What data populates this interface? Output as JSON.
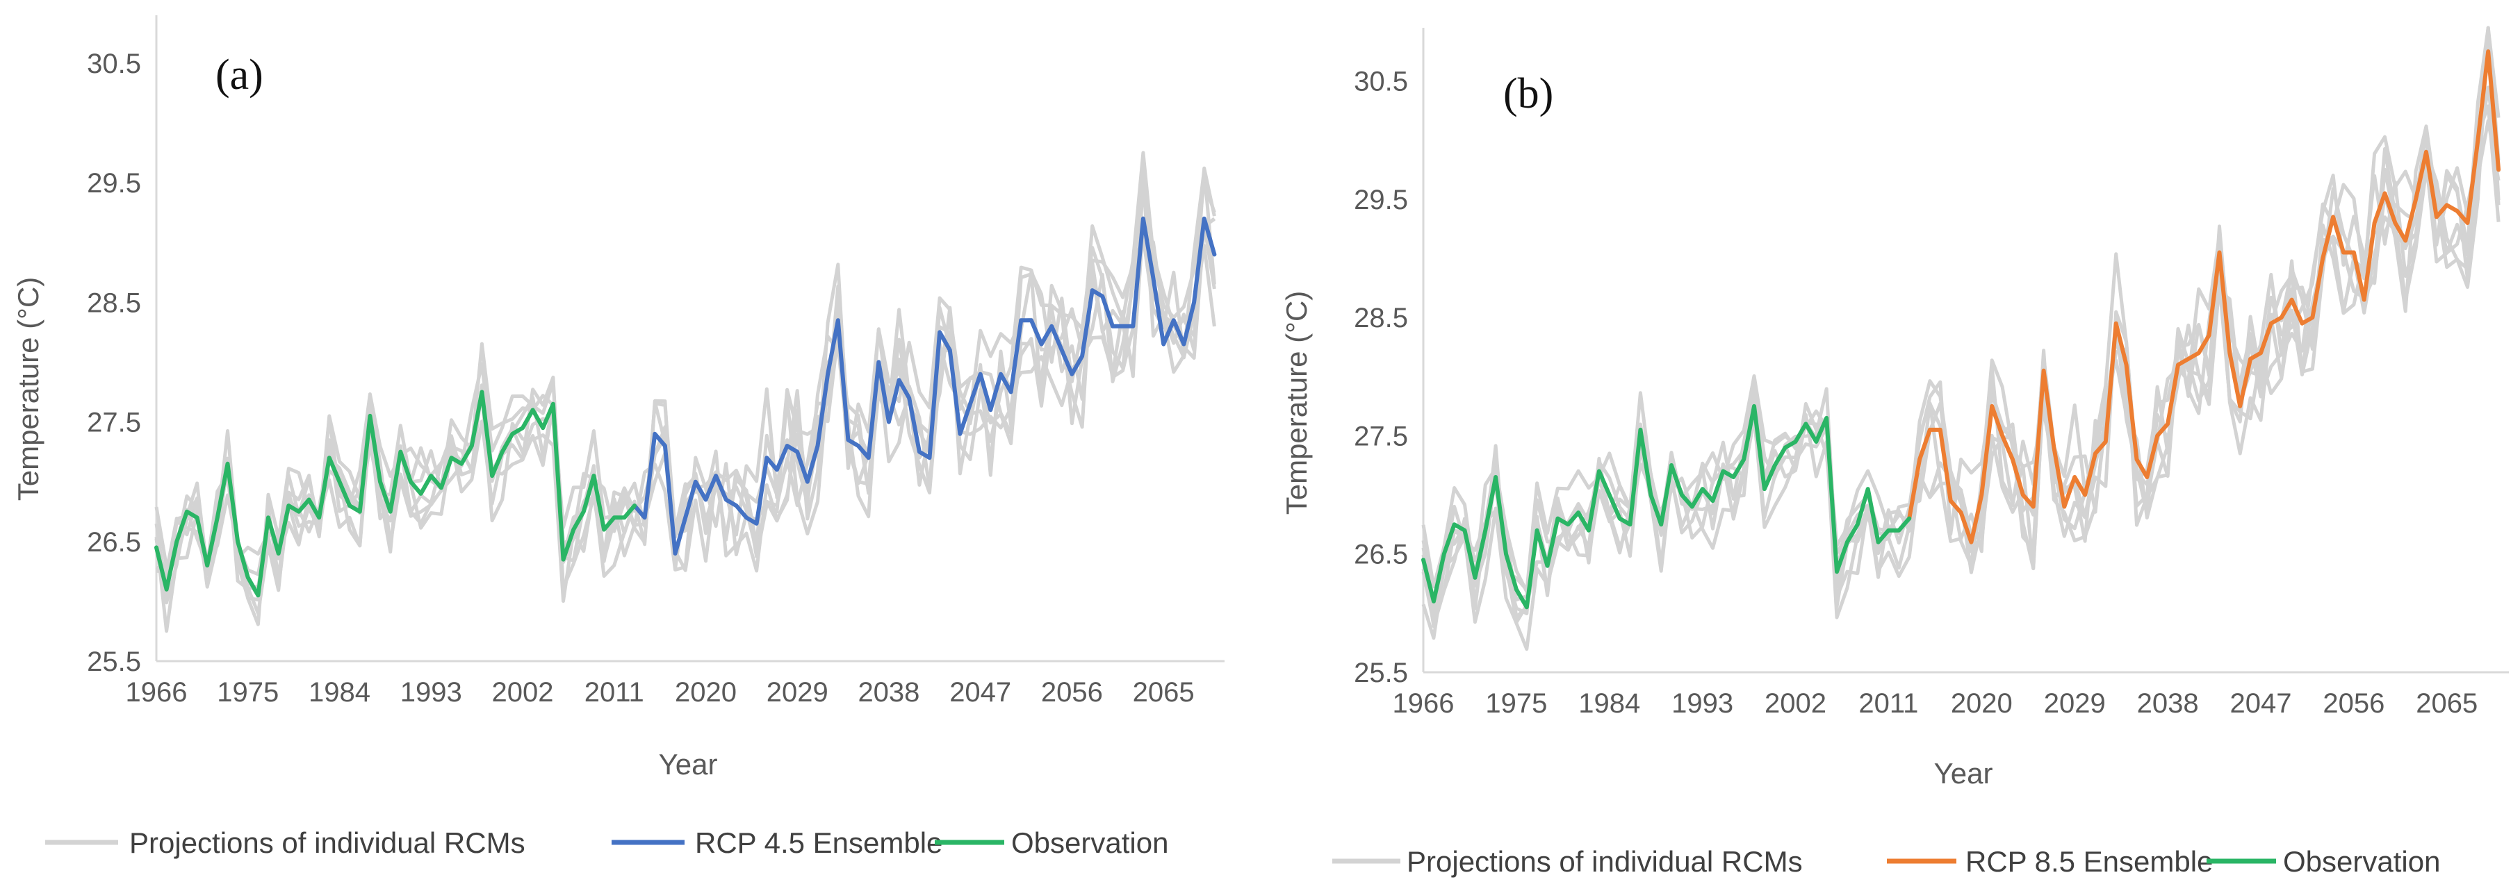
{
  "chart_data": [
    {
      "panel_label": "(a)",
      "type": "line",
      "xlabel": "Year",
      "ylabel": "Temperature (°C)",
      "x_ticks": [
        "1966",
        "1975",
        "1984",
        "1993",
        "2002",
        "2011",
        "2020",
        "2029",
        "2038",
        "2047",
        "2056",
        "2065"
      ],
      "y_ticks": [
        "25.5",
        "26.5",
        "27.5",
        "28.5",
        "29.5",
        "30.5"
      ],
      "xlim": [
        1966,
        2071
      ],
      "ylim": [
        25.5,
        30.9
      ],
      "grid": false,
      "legend": {
        "position": "bottom",
        "entries": [
          {
            "label": "Projections of individual RCMs",
            "color": "#d3d3d3"
          },
          {
            "label": "RCP 4.5 Ensemble",
            "color": "#4472c4"
          },
          {
            "label": "Observation",
            "color": "#2ab565"
          }
        ]
      },
      "series": [
        {
          "name": "Observation",
          "color": "#2ab565",
          "x": [
            1966,
            1967,
            1968,
            1969,
            1970,
            1971,
            1972,
            1973,
            1974,
            1975,
            1976,
            1977,
            1978,
            1979,
            1980,
            1981,
            1982,
            1983,
            1984,
            1985,
            1986,
            1987,
            1988,
            1989,
            1990,
            1991,
            1992,
            1993,
            1994,
            1995,
            1996,
            1997,
            1998,
            1999,
            2000,
            2001,
            2002,
            2003,
            2004,
            2005,
            2006,
            2007,
            2008,
            2009,
            2010,
            2011,
            2012,
            2013
          ],
          "y": [
            26.45,
            26.1,
            26.5,
            26.75,
            26.7,
            26.3,
            26.7,
            27.15,
            26.5,
            26.2,
            26.05,
            26.7,
            26.4,
            26.8,
            26.75,
            26.85,
            26.7,
            27.2,
            27.0,
            26.8,
            26.75,
            27.55,
            27.0,
            26.75,
            27.25,
            27.0,
            26.9,
            27.05,
            26.95,
            27.2,
            27.15,
            27.3,
            27.75,
            27.05,
            27.25,
            27.4,
            27.45,
            27.6,
            27.45,
            27.65,
            26.35,
            26.6,
            26.75,
            27.05,
            26.6,
            26.7,
            26.7,
            26.8
          ]
        },
        {
          "name": "RCP 4.5 Ensemble",
          "color": "#4472c4",
          "x": [
            2013,
            2014,
            2015,
            2016,
            2017,
            2018,
            2019,
            2020,
            2021,
            2022,
            2023,
            2024,
            2025,
            2026,
            2027,
            2028,
            2029,
            2030,
            2031,
            2032,
            2033,
            2034,
            2035,
            2036,
            2037,
            2038,
            2039,
            2040,
            2041,
            2042,
            2043,
            2044,
            2045,
            2046,
            2047,
            2048,
            2049,
            2050,
            2051,
            2052,
            2053,
            2054,
            2055,
            2056,
            2057,
            2058,
            2059,
            2060,
            2061,
            2062,
            2063,
            2064,
            2065,
            2066,
            2067,
            2068,
            2069,
            2070
          ],
          "y": [
            26.8,
            26.7,
            27.4,
            27.3,
            26.4,
            26.7,
            27.0,
            26.85,
            27.05,
            26.85,
            26.8,
            26.7,
            26.65,
            27.2,
            27.1,
            27.3,
            27.25,
            27.0,
            27.3,
            27.9,
            28.35,
            27.35,
            27.3,
            27.2,
            28.0,
            27.5,
            27.85,
            27.7,
            27.25,
            27.2,
            28.25,
            28.1,
            27.4,
            27.65,
            27.9,
            27.6,
            27.9,
            27.75,
            28.35,
            28.35,
            28.15,
            28.3,
            28.1,
            27.9,
            28.05,
            28.6,
            28.55,
            28.3,
            28.3,
            28.3,
            29.2,
            28.7,
            28.15,
            28.35,
            28.15,
            28.5,
            29.2,
            28.9
          ]
        }
      ]
    },
    {
      "panel_label": "(b)",
      "type": "line",
      "xlabel": "Year",
      "ylabel": "Temperature (°C)",
      "x_ticks": [
        "1966",
        "1975",
        "1984",
        "1993",
        "2002",
        "2011",
        "2020",
        "2029",
        "2038",
        "2047",
        "2056",
        "2065"
      ],
      "y_ticks": [
        "25.5",
        "26.5",
        "27.5",
        "28.5",
        "29.5",
        "30.5"
      ],
      "xlim": [
        1966,
        2071
      ],
      "ylim": [
        25.5,
        30.95
      ],
      "grid": false,
      "legend": {
        "position": "bottom",
        "entries": [
          {
            "label": "Projections of individual RCMs",
            "color": "#d3d3d3"
          },
          {
            "label": "RCP 8.5 Ensemble",
            "color": "#ed7d31"
          },
          {
            "label": "Observation",
            "color": "#2ab565"
          }
        ]
      },
      "series": [
        {
          "name": "Observation",
          "color": "#2ab565",
          "x": [
            1966,
            1967,
            1968,
            1969,
            1970,
            1971,
            1972,
            1973,
            1974,
            1975,
            1976,
            1977,
            1978,
            1979,
            1980,
            1981,
            1982,
            1983,
            1984,
            1985,
            1986,
            1987,
            1988,
            1989,
            1990,
            1991,
            1992,
            1993,
            1994,
            1995,
            1996,
            1997,
            1998,
            1999,
            2000,
            2001,
            2002,
            2003,
            2004,
            2005,
            2006,
            2007,
            2008,
            2009,
            2010,
            2011,
            2012,
            2013
          ],
          "y": [
            26.45,
            26.1,
            26.5,
            26.75,
            26.7,
            26.3,
            26.7,
            27.15,
            26.5,
            26.2,
            26.05,
            26.7,
            26.4,
            26.8,
            26.75,
            26.85,
            26.7,
            27.2,
            27.0,
            26.8,
            26.75,
            27.55,
            27.0,
            26.75,
            27.25,
            27.0,
            26.9,
            27.05,
            26.95,
            27.2,
            27.15,
            27.3,
            27.75,
            27.05,
            27.25,
            27.4,
            27.45,
            27.6,
            27.45,
            27.65,
            26.35,
            26.6,
            26.75,
            27.05,
            26.6,
            26.7,
            26.7,
            26.8
          ]
        },
        {
          "name": "RCP 8.5 Ensemble",
          "color": "#ed7d31",
          "x": [
            2013,
            2014,
            2015,
            2016,
            2017,
            2018,
            2019,
            2020,
            2021,
            2022,
            2023,
            2024,
            2025,
            2026,
            2027,
            2028,
            2029,
            2030,
            2031,
            2032,
            2033,
            2034,
            2035,
            2036,
            2037,
            2038,
            2039,
            2040,
            2041,
            2042,
            2043,
            2044,
            2045,
            2046,
            2047,
            2048,
            2049,
            2050,
            2051,
            2052,
            2053,
            2054,
            2055,
            2056,
            2057,
            2058,
            2059,
            2060,
            2061,
            2062,
            2063,
            2064,
            2065,
            2066,
            2067,
            2068,
            2069,
            2070
          ],
          "y": [
            26.8,
            27.3,
            27.55,
            27.55,
            26.95,
            26.85,
            26.6,
            27.0,
            27.75,
            27.5,
            27.3,
            27.0,
            26.9,
            28.05,
            27.4,
            26.9,
            27.15,
            27.0,
            27.35,
            27.45,
            28.45,
            28.1,
            27.3,
            27.15,
            27.5,
            27.6,
            28.1,
            28.15,
            28.2,
            28.35,
            29.05,
            28.2,
            27.75,
            28.15,
            28.2,
            28.45,
            28.5,
            28.65,
            28.45,
            28.5,
            29.0,
            29.35,
            29.05,
            29.05,
            28.65,
            29.3,
            29.55,
            29.3,
            29.15,
            29.5,
            29.9,
            29.35,
            29.45,
            29.4,
            29.3,
            30.0,
            30.75,
            29.75
          ]
        }
      ]
    }
  ]
}
